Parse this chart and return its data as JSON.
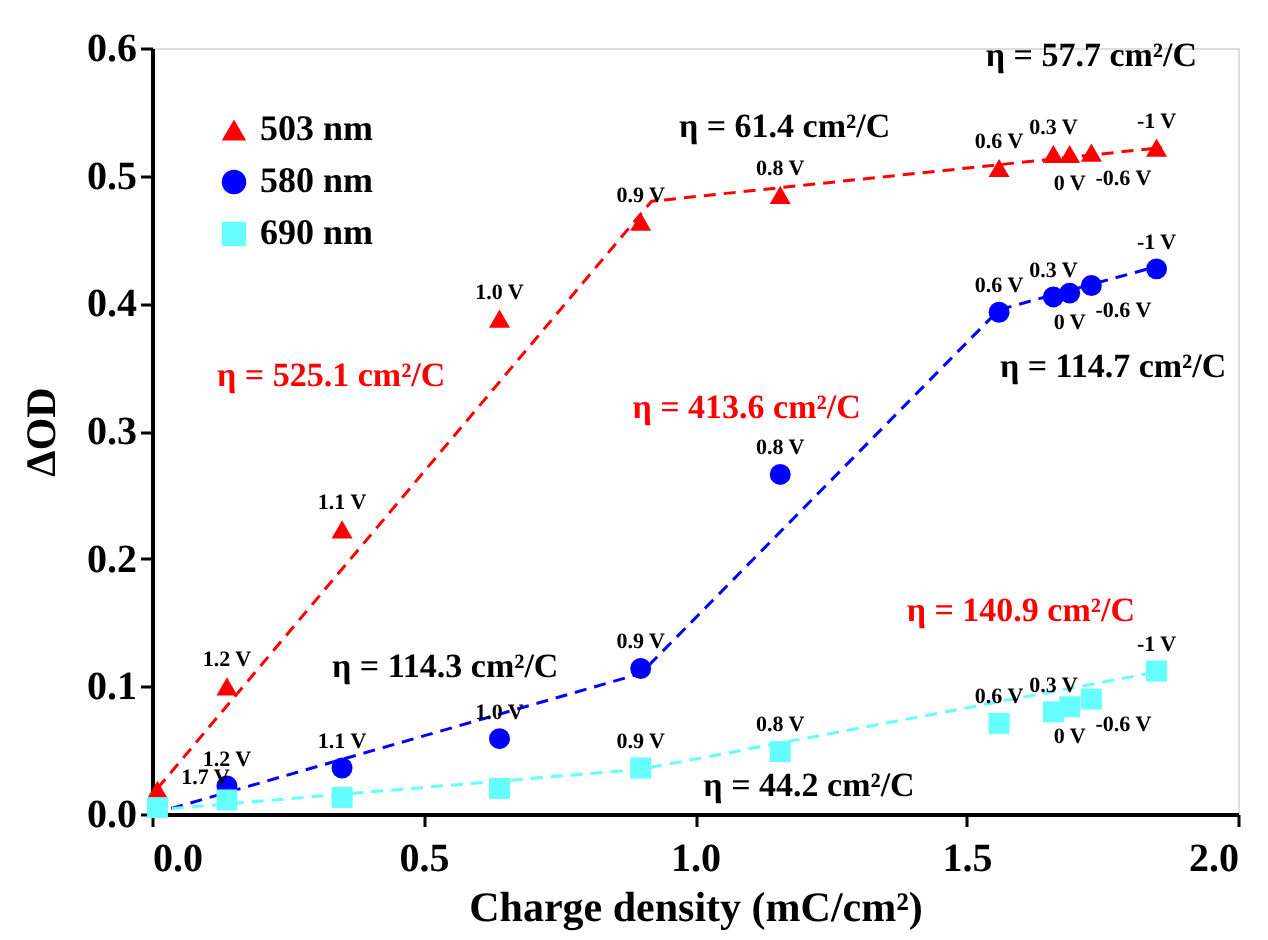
{
  "chart_data": {
    "type": "scatter",
    "xlabel": "Charge density (mC/cm²)",
    "ylabel": "ΔOD",
    "xlim": [
      0,
      2
    ],
    "ylim": [
      0,
      0.6
    ],
    "xticks": [
      {
        "value": 0,
        "label": "0.0"
      },
      0.5,
      {
        "value": 1,
        "label": "1.0"
      },
      1.5,
      {
        "value": 2,
        "label": "2.0"
      }
    ],
    "yticks": [
      {
        "value": 0,
        "label": "0.0"
      },
      0.1,
      0.2,
      0.3,
      0.4,
      0.5,
      0.6
    ],
    "legend": "top left",
    "grid": false,
    "series": [
      {
        "name": "503 nm",
        "color": "#ff0000",
        "marker": "triangle",
        "x": [
          0.01,
          0.138,
          0.35,
          0.64,
          0.9,
          1.157,
          1.56,
          1.66,
          1.69,
          1.73,
          1.85
        ],
        "values": [
          0.019,
          0.1,
          0.223,
          0.388,
          0.464,
          0.485,
          0.506,
          0.517,
          0.517,
          0.518,
          0.522
        ]
      },
      {
        "name": "580 nm",
        "color": "#0000ff",
        "marker": "circle",
        "x": [
          0.138,
          0.35,
          0.64,
          0.9,
          1.157,
          1.56,
          1.66,
          1.69,
          1.73,
          1.85
        ],
        "values": [
          0.022,
          0.036,
          0.059,
          0.114,
          0.266,
          0.393,
          0.405,
          0.408,
          0.414,
          0.427
        ]
      },
      {
        "name": "690 nm",
        "color": "#66ffff",
        "marker": "square",
        "x": [
          0.01,
          0.138,
          0.35,
          0.64,
          0.9,
          1.157,
          1.56,
          1.66,
          1.69,
          1.73,
          1.85
        ],
        "values": [
          0.005,
          0.011,
          0.013,
          0.02,
          0.036,
          0.049,
          0.071,
          0.08,
          0.084,
          0.09,
          0.112
        ]
      },
      {
        "type": "line",
        "line_style": "dashed",
        "color": "#ff0000",
        "x": [
          0.01,
          0.92,
          1.86
        ],
        "values": [
          0.02,
          0.48,
          0.522
        ]
      },
      {
        "type": "line",
        "line_style": "dashed",
        "color": "#0000ff",
        "x": [
          0,
          0.9,
          1.56,
          1.86
        ],
        "values": [
          0,
          0.11,
          0.395,
          0.43
        ]
      },
      {
        "type": "line",
        "line_style": "dashed",
        "color": "#66ffff",
        "x": [
          0,
          0.9,
          1.86
        ],
        "values": [
          0.003,
          0.035,
          0.112
        ]
      }
    ],
    "annotations": [
      {
        "text": "1.7 V",
        "x": 0.01,
        "y": 0.019
      },
      {
        "text": "1.2 V",
        "x": 0.138,
        "y": 0.1
      },
      {
        "text": "1.1 V",
        "x": 0.35,
        "y": 0.223
      },
      {
        "text": "1.0 V",
        "x": 0.64,
        "y": 0.388
      },
      {
        "text": "0.9 V",
        "x": 0.9,
        "y": 0.464
      },
      {
        "text": "0.8 V",
        "x": 1.157,
        "y": 0.485
      },
      {
        "text": "0.6 V",
        "x": 1.56,
        "y": 0.506
      },
      {
        "text": "0.3 V",
        "x": 1.66,
        "y": 0.517
      },
      {
        "text": "0 V",
        "x": 1.69,
        "y": 0.517
      },
      {
        "text": "-0.6 V",
        "x": 1.73,
        "y": 0.518
      },
      {
        "text": "-1 V",
        "x": 1.85,
        "y": 0.522
      },
      {
        "text": "1.2 V",
        "x": 0.138,
        "y": 0.022
      },
      {
        "text": "1.1 V",
        "x": 0.35,
        "y": 0.036
      },
      {
        "text": "1.0 V",
        "x": 0.64,
        "y": 0.059
      },
      {
        "text": "0.9 V",
        "x": 0.9,
        "y": 0.114
      },
      {
        "text": "0.8 V",
        "x": 1.157,
        "y": 0.266
      },
      {
        "text": "0.6 V",
        "x": 1.56,
        "y": 0.393
      },
      {
        "text": "0.3 V",
        "x": 1.66,
        "y": 0.405
      },
      {
        "text": "0 V",
        "x": 1.69,
        "y": 0.408
      },
      {
        "text": "-0.6 V",
        "x": 1.73,
        "y": 0.414
      },
      {
        "text": "-1 V",
        "x": 1.85,
        "y": 0.427
      },
      {
        "text": "0.9 V",
        "x": 0.9,
        "y": 0.036
      },
      {
        "text": "0.8 V",
        "x": 1.157,
        "y": 0.049
      },
      {
        "text": "0.6 V",
        "x": 1.56,
        "y": 0.071
      },
      {
        "text": "0.3 V",
        "x": 1.66,
        "y": 0.08
      },
      {
        "text": "0 V",
        "x": 1.69,
        "y": 0.084
      },
      {
        "text": "-0.6 V",
        "x": 1.73,
        "y": 0.09
      },
      {
        "text": "-1 V",
        "x": 1.85,
        "y": 0.112
      },
      "η = 525.1 cm²/C",
      "η = 61.4 cm²/C",
      "η = 57.7 cm²/C",
      "η = 413.6 cm²/C",
      "η = 114.7 cm²/C",
      "η = 114.3 cm²/C",
      "η = 140.9 cm²/C",
      "η = 44.2 cm²/C"
    ]
  }
}
